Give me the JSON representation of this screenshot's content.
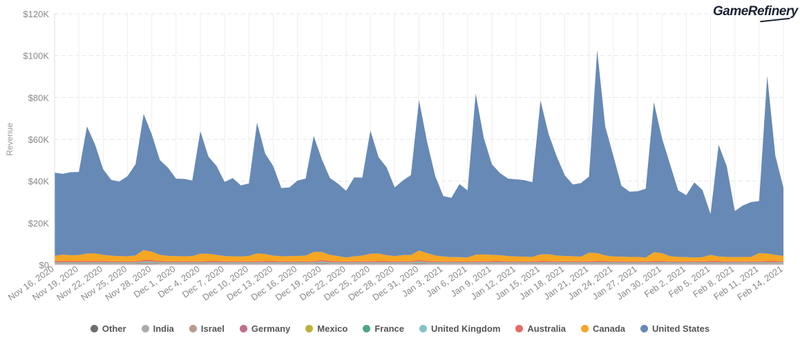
{
  "brand": {
    "name": "GameRefinery"
  },
  "chart_data": {
    "type": "area",
    "stacked": true,
    "xlabel": "",
    "ylabel": "Revenue",
    "ylim": [
      0,
      120000
    ],
    "yticks": [
      0,
      20000,
      40000,
      60000,
      80000,
      100000,
      120000
    ],
    "ytick_labels": [
      "$0",
      "$20K",
      "$40K",
      "$60K",
      "$80K",
      "$100K",
      "$120K"
    ],
    "grid": true,
    "legend_position": "bottom",
    "x": [
      "Nov 16, 2020",
      "Nov 17, 2020",
      "Nov 18, 2020",
      "Nov 19, 2020",
      "Nov 20, 2020",
      "Nov 21, 2020",
      "Nov 22, 2020",
      "Nov 23, 2020",
      "Nov 24, 2020",
      "Nov 25, 2020",
      "Nov 26, 2020",
      "Nov 27, 2020",
      "Nov 28, 2020",
      "Nov 29, 2020",
      "Nov 30, 2020",
      "Dec 1, 2020",
      "Dec 2, 2020",
      "Dec 3, 2020",
      "Dec 4, 2020",
      "Dec 5, 2020",
      "Dec 6, 2020",
      "Dec 7, 2020",
      "Dec 8, 2020",
      "Dec 9, 2020",
      "Dec 10, 2020",
      "Dec 11, 2020",
      "Dec 12, 2020",
      "Dec 13, 2020",
      "Dec 14, 2020",
      "Dec 15, 2020",
      "Dec 16, 2020",
      "Dec 17, 2020",
      "Dec 18, 2020",
      "Dec 19, 2020",
      "Dec 20, 2020",
      "Dec 21, 2020",
      "Dec 22, 2020",
      "Dec 23, 2020",
      "Dec 24, 2020",
      "Dec 25, 2020",
      "Dec 26, 2020",
      "Dec 27, 2020",
      "Dec 28, 2020",
      "Dec 29, 2020",
      "Dec 30, 2020",
      "Dec 31, 2020",
      "Jan 1, 2021",
      "Jan 2, 2021",
      "Jan 3, 2021",
      "Jan 4, 2021",
      "Jan 5, 2021",
      "Jan 6, 2021",
      "Jan 7, 2021",
      "Jan 8, 2021",
      "Jan 9, 2021",
      "Jan 10, 2021",
      "Jan 11, 2021",
      "Jan 12, 2021",
      "Jan 13, 2021",
      "Jan 14, 2021",
      "Jan 15, 2021",
      "Jan 16, 2021",
      "Jan 17, 2021",
      "Jan 18, 2021",
      "Jan 19, 2021",
      "Jan 20, 2021",
      "Jan 21, 2021",
      "Jan 22, 2021",
      "Jan 23, 2021",
      "Jan 24, 2021",
      "Jan 25, 2021",
      "Jan 26, 2021",
      "Jan 27, 2021",
      "Jan 28, 2021",
      "Jan 29, 2021",
      "Jan 30, 2021",
      "Jan 31, 2021",
      "Feb 1, 2021",
      "Feb 2, 2021",
      "Feb 3, 2021",
      "Feb 4, 2021",
      "Feb 5, 2021",
      "Feb 6, 2021",
      "Feb 7, 2021",
      "Feb 8, 2021",
      "Feb 9, 2021",
      "Feb 10, 2021",
      "Feb 11, 2021",
      "Feb 12, 2021",
      "Feb 13, 2021",
      "Feb 14, 2021"
    ],
    "x_tick_labels": [
      "Nov 16, 2020",
      "Nov 19, 2020",
      "Nov 22, 2020",
      "Nov 25, 2020",
      "Nov 28, 2020",
      "Dec 1, 2020",
      "Dec 4, 2020",
      "Dec 7, 2020",
      "Dec 10, 2020",
      "Dec 13, 2020",
      "Dec 16, 2020",
      "Dec 19, 2020",
      "Dec 22, 2020",
      "Dec 25, 2020",
      "Dec 28, 2020",
      "Dec 31, 2020",
      "Jan 3, 2021",
      "Jan 6, 2021",
      "Jan 9, 2021",
      "Jan 12, 2021",
      "Jan 15, 2021",
      "Jan 18, 2021",
      "Jan 21, 2021",
      "Jan 24, 2021",
      "Jan 27, 2021",
      "Jan 30, 2021",
      "Feb 2, 2021",
      "Feb 5, 2021",
      "Feb 8, 2021",
      "Feb 11, 2021",
      "Feb 14, 2021"
    ],
    "series": [
      {
        "name": "Other",
        "color": "#6e6e6e",
        "values": [
          200,
          200,
          200,
          200,
          200,
          200,
          200,
          200,
          200,
          200,
          200,
          300,
          300,
          200,
          200,
          200,
          200,
          200,
          200,
          200,
          200,
          200,
          200,
          200,
          200,
          200,
          200,
          200,
          200,
          200,
          200,
          200,
          200,
          300,
          200,
          200,
          200,
          200,
          200,
          200,
          200,
          200,
          200,
          200,
          200,
          300,
          200,
          200,
          200,
          200,
          200,
          200,
          200,
          200,
          200,
          200,
          200,
          200,
          200,
          200,
          200,
          200,
          200,
          200,
          200,
          200,
          200,
          200,
          200,
          200,
          200,
          200,
          200,
          200,
          200,
          200,
          200,
          200,
          200,
          200,
          200,
          200,
          200,
          200,
          200,
          200,
          200,
          200,
          200,
          200,
          200
        ]
      },
      {
        "name": "India",
        "color": "#a8aeab",
        "values": [
          100,
          100,
          100,
          100,
          100,
          100,
          100,
          100,
          100,
          100,
          100,
          100,
          100,
          100,
          100,
          100,
          100,
          100,
          100,
          100,
          100,
          100,
          100,
          100,
          100,
          100,
          100,
          100,
          100,
          100,
          100,
          100,
          100,
          100,
          100,
          100,
          100,
          100,
          100,
          100,
          100,
          100,
          100,
          100,
          100,
          100,
          100,
          100,
          100,
          100,
          100,
          100,
          100,
          100,
          100,
          100,
          100,
          100,
          100,
          100,
          100,
          100,
          100,
          100,
          100,
          100,
          100,
          100,
          100,
          100,
          100,
          100,
          100,
          100,
          100,
          100,
          100,
          100,
          100,
          100,
          100,
          100,
          100,
          100,
          100,
          100,
          100,
          100,
          100,
          100,
          100
        ]
      },
      {
        "name": "Israel",
        "color": "#b89a8f",
        "values": [
          100,
          100,
          100,
          100,
          100,
          100,
          100,
          100,
          100,
          100,
          100,
          100,
          100,
          100,
          100,
          100,
          100,
          100,
          100,
          100,
          100,
          100,
          100,
          100,
          100,
          100,
          100,
          100,
          100,
          100,
          100,
          100,
          100,
          100,
          100,
          100,
          100,
          100,
          100,
          100,
          100,
          100,
          100,
          100,
          100,
          100,
          100,
          100,
          100,
          100,
          100,
          100,
          100,
          100,
          100,
          100,
          100,
          100,
          100,
          100,
          100,
          100,
          100,
          100,
          100,
          100,
          100,
          100,
          100,
          100,
          100,
          100,
          100,
          100,
          100,
          100,
          100,
          100,
          100,
          100,
          100,
          100,
          100,
          100,
          100,
          100,
          100,
          100,
          100,
          100,
          100
        ]
      },
      {
        "name": "Germany",
        "color": "#c06c8c",
        "values": [
          200,
          200,
          200,
          200,
          200,
          200,
          200,
          200,
          200,
          200,
          200,
          300,
          300,
          200,
          200,
          200,
          200,
          200,
          200,
          200,
          200,
          200,
          200,
          200,
          200,
          200,
          200,
          200,
          200,
          200,
          200,
          200,
          200,
          300,
          200,
          200,
          200,
          200,
          200,
          200,
          200,
          200,
          200,
          200,
          200,
          300,
          200,
          200,
          200,
          200,
          200,
          200,
          200,
          200,
          200,
          200,
          200,
          200,
          200,
          200,
          200,
          200,
          200,
          200,
          200,
          200,
          200,
          200,
          200,
          200,
          200,
          200,
          200,
          200,
          200,
          200,
          200,
          200,
          200,
          200,
          200,
          200,
          200,
          200,
          200,
          200,
          200,
          200,
          200,
          200,
          200
        ]
      },
      {
        "name": "Mexico",
        "color": "#b9b23a",
        "values": [
          100,
          100,
          100,
          100,
          100,
          100,
          100,
          100,
          100,
          100,
          100,
          100,
          100,
          100,
          100,
          100,
          100,
          100,
          100,
          100,
          100,
          100,
          100,
          100,
          100,
          100,
          100,
          100,
          100,
          100,
          100,
          100,
          100,
          100,
          100,
          100,
          100,
          100,
          100,
          100,
          100,
          100,
          100,
          100,
          100,
          100,
          100,
          100,
          100,
          100,
          100,
          100,
          100,
          100,
          100,
          100,
          100,
          100,
          100,
          100,
          100,
          100,
          100,
          100,
          100,
          100,
          100,
          100,
          100,
          100,
          100,
          100,
          100,
          100,
          100,
          100,
          100,
          100,
          100,
          100,
          100,
          100,
          100,
          100,
          100,
          100,
          100,
          100,
          100,
          100,
          100
        ]
      },
      {
        "name": "France",
        "color": "#4fa583",
        "values": [
          200,
          200,
          200,
          200,
          200,
          200,
          200,
          200,
          200,
          200,
          200,
          300,
          300,
          200,
          200,
          200,
          200,
          200,
          200,
          200,
          200,
          200,
          200,
          200,
          200,
          200,
          200,
          200,
          200,
          200,
          200,
          200,
          200,
          300,
          200,
          200,
          200,
          200,
          200,
          200,
          200,
          200,
          200,
          200,
          200,
          300,
          200,
          200,
          200,
          200,
          200,
          200,
          200,
          200,
          200,
          200,
          200,
          200,
          200,
          200,
          200,
          200,
          200,
          200,
          200,
          200,
          200,
          200,
          200,
          200,
          200,
          200,
          200,
          200,
          200,
          200,
          200,
          200,
          200,
          200,
          200,
          200,
          200,
          200,
          200,
          200,
          200,
          200,
          200,
          200,
          200
        ]
      },
      {
        "name": "United Kingdom",
        "color": "#86c2c8",
        "values": [
          300,
          300,
          300,
          300,
          300,
          300,
          300,
          300,
          300,
          300,
          300,
          400,
          400,
          300,
          300,
          300,
          300,
          300,
          300,
          300,
          300,
          300,
          300,
          300,
          300,
          300,
          300,
          300,
          300,
          300,
          300,
          300,
          300,
          400,
          300,
          300,
          300,
          300,
          300,
          300,
          300,
          300,
          300,
          300,
          300,
          400,
          300,
          300,
          300,
          300,
          300,
          300,
          300,
          300,
          300,
          300,
          300,
          300,
          300,
          300,
          300,
          300,
          300,
          300,
          300,
          300,
          300,
          300,
          300,
          300,
          300,
          300,
          300,
          300,
          300,
          300,
          300,
          300,
          300,
          300,
          300,
          300,
          300,
          300,
          300,
          300,
          300,
          300,
          300,
          300,
          300
        ]
      },
      {
        "name": "Australia",
        "color": "#e86a62",
        "values": [
          600,
          700,
          600,
          600,
          700,
          700,
          600,
          500,
          500,
          500,
          500,
          700,
          700,
          600,
          500,
          500,
          500,
          500,
          500,
          600,
          600,
          500,
          500,
          500,
          500,
          500,
          600,
          600,
          500,
          500,
          500,
          500,
          500,
          700,
          600,
          500,
          500,
          500,
          500,
          500,
          600,
          600,
          500,
          500,
          500,
          700,
          600,
          500,
          500,
          500,
          500,
          500,
          500,
          500,
          600,
          600,
          500,
          500,
          500,
          500,
          600,
          600,
          500,
          500,
          500,
          500,
          500,
          600,
          600,
          500,
          500,
          500,
          500,
          500,
          600,
          600,
          500,
          500,
          500,
          500,
          500,
          600,
          600,
          500,
          500,
          500,
          500,
          500,
          600,
          600,
          500
        ]
      },
      {
        "name": "Canada",
        "color": "#f5a623",
        "values": [
          2500,
          3000,
          2800,
          2900,
          3500,
          3600,
          3000,
          2700,
          2500,
          2400,
          2800,
          4800,
          4000,
          3000,
          2600,
          2500,
          2400,
          2500,
          3600,
          3500,
          3000,
          2500,
          2400,
          2300,
          2600,
          3800,
          3400,
          2600,
          2400,
          2500,
          2600,
          2700,
          4500,
          3900,
          3000,
          2500,
          1800,
          2400,
          2700,
          3600,
          3600,
          2800,
          2500,
          3000,
          3000,
          4600,
          3800,
          2800,
          2300,
          2000,
          2000,
          1800,
          3200,
          3300,
          3000,
          2800,
          2500,
          2300,
          2200,
          2100,
          3200,
          3300,
          2700,
          2600,
          2400,
          2200,
          4100,
          3800,
          2700,
          2300,
          2200,
          2100,
          2100,
          1800,
          4200,
          3800,
          2400,
          2100,
          2000,
          1800,
          2000,
          3000,
          2200,
          2100,
          2000,
          2100,
          2100,
          3900,
          3600,
          3000,
          2600
        ]
      },
      {
        "name": "United States",
        "color": "#6789b5",
        "values": [
          39800,
          38600,
          39700,
          39700,
          60800,
          52000,
          40900,
          36200,
          35600,
          38300,
          43600,
          65000,
          56100,
          45300,
          42200,
          37000,
          37000,
          36100,
          58600,
          46400,
          42500,
          35400,
          37400,
          34000,
          34600,
          62500,
          48000,
          42800,
          32600,
          32800,
          36000,
          36800,
          55400,
          44300,
          36700,
          34600,
          31900,
          37700,
          37300,
          58900,
          46100,
          42000,
          32800,
          35600,
          38200,
          71900,
          53200,
          38000,
          28900,
          28300,
          34900,
          32100,
          77000,
          55700,
          43300,
          39300,
          37000,
          36900,
          36600,
          35700,
          73600,
          57500,
          47500,
          38500,
          34300,
          35200,
          36400,
          97100,
          61600,
          48100,
          33900,
          31200,
          31400,
          32900,
          71700,
          55000,
          44000,
          31800,
          29600,
          35900,
          32100,
          19500,
          53400,
          43400,
          22000,
          24600,
          26200,
          24900,
          85000,
          47400,
          32600
        ]
      }
    ]
  }
}
